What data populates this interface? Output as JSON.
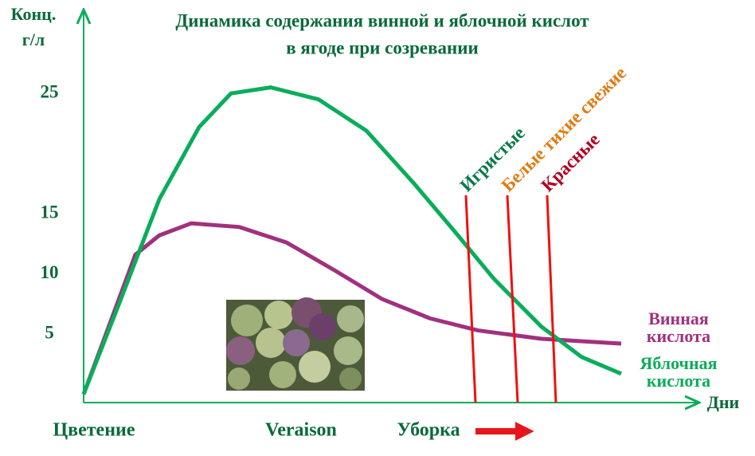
{
  "chart_data": {
    "type": "line",
    "title": [
      "Динамика содержания винной и яблочной кислот",
      "в ягоде при созревании"
    ],
    "y_label": [
      "Конц.",
      "г/л"
    ],
    "x_label": "Дни",
    "x_stages": [
      "Цветение",
      "Veraison",
      "Уборка"
    ],
    "harvest_marks": [
      {
        "label": "Игристые",
        "color": "#0a7a4a"
      },
      {
        "label": "Белые тихие свежие",
        "color": "#e07b12"
      },
      {
        "label": "Красные",
        "color": "#b00020"
      }
    ],
    "xlim": [
      0,
      775
    ],
    "ylim": [
      -0.7,
      27
    ],
    "yticks": [
      5,
      10,
      15,
      25
    ],
    "series": [
      {
        "name": [
          "Винная",
          "кислота"
        ],
        "color": "#a0317f",
        "x": [
          0,
          65,
          95,
          135,
          195,
          255,
          315,
          375,
          435,
          495,
          575,
          675
        ],
        "values": [
          0,
          11.6,
          13.2,
          14.2,
          13.9,
          12.6,
          10.3,
          7.9,
          6.3,
          5.3,
          4.6,
          4.2
        ]
      },
      {
        "name": [
          "Яблочная",
          "кислота"
        ],
        "color": "#0aad5a",
        "x": [
          0,
          45,
          95,
          145,
          185,
          235,
          295,
          355,
          415,
          465,
          515,
          575,
          625,
          675
        ],
        "values": [
          0,
          7.6,
          16.2,
          22.2,
          25,
          25.5,
          24.5,
          21.9,
          17.5,
          13.6,
          9.6,
          5.6,
          3.1,
          1.7
        ]
      }
    ]
  }
}
